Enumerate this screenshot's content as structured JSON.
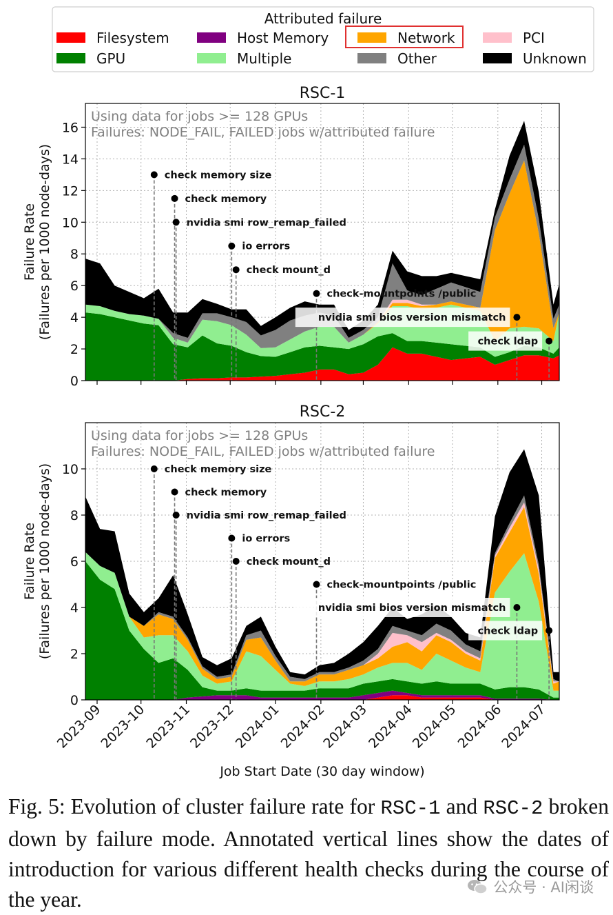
{
  "legend": {
    "title": "Attributed failure",
    "entries": [
      {
        "label": "Filesystem",
        "color": "#ff0000"
      },
      {
        "label": "Host Memory",
        "color": "#800080"
      },
      {
        "label": "Network",
        "color": "#ffa500"
      },
      {
        "label": "PCI",
        "color": "#ffc0cb"
      },
      {
        "label": "GPU",
        "color": "#008000"
      },
      {
        "label": "Multiple",
        "color": "#90ee90"
      },
      {
        "label": "Other",
        "color": "#808080"
      },
      {
        "label": "Unknown",
        "color": "#000000"
      }
    ],
    "highlighted": "Network",
    "highlight_color": "#e03030"
  },
  "chart_data": [
    {
      "type": "area",
      "title": "RSC-1",
      "subtitle_line1": "Using data for jobs >= 128 GPUs",
      "subtitle_line2": "Failures: NODE_FAIL, FAILED jobs w/attributed failure",
      "xlabel": "",
      "ylabel_line1": "Failure Rate",
      "ylabel_line2": "(Failures per 1000 node-days)",
      "xlim_days": [
        0,
        324
      ],
      "ylim": [
        0,
        17.5
      ],
      "yticks": [
        0,
        2,
        4,
        6,
        8,
        10,
        12,
        14,
        16
      ],
      "ytick_labels": [
        "0",
        "2",
        "4",
        "6",
        "8",
        "10",
        "12",
        "14",
        "16"
      ],
      "x_days": [
        0,
        10,
        20,
        30,
        40,
        50,
        60,
        70,
        80,
        90,
        100,
        110,
        120,
        130,
        140,
        150,
        160,
        170,
        180,
        190,
        200,
        210,
        220,
        230,
        240,
        250,
        260,
        270,
        280,
        290,
        300,
        310,
        320,
        324
      ],
      "series": [
        {
          "name": "Filesystem",
          "values": [
            0,
            0,
            0,
            0,
            0,
            0,
            0,
            0.1,
            0.15,
            0.15,
            0.2,
            0.2,
            0.25,
            0.3,
            0.4,
            0.5,
            0.7,
            0.7,
            0.4,
            0.5,
            1.0,
            2.1,
            1.7,
            1.7,
            1.5,
            1.3,
            1.4,
            1.5,
            1.0,
            1.3,
            1.6,
            1.6,
            1.4,
            1.6
          ]
        },
        {
          "name": "Host Memory",
          "values": [
            0,
            0,
            0,
            0,
            0,
            0,
            0,
            0,
            0,
            0,
            0,
            0,
            0,
            0,
            0,
            0,
            0,
            0,
            0,
            0,
            0,
            0,
            0,
            0,
            0,
            0,
            0,
            0,
            0,
            0,
            0,
            0,
            0,
            0
          ]
        },
        {
          "name": "GPU",
          "values": [
            4.3,
            4.2,
            4.0,
            3.8,
            3.6,
            3.5,
            2.3,
            2.0,
            2.7,
            2.2,
            2.0,
            1.6,
            1.3,
            1.2,
            1.4,
            1.6,
            1.5,
            1.4,
            1.6,
            1.8,
            1.8,
            0.9,
            0.8,
            0.8,
            0.9,
            1.0,
            0.8,
            0.6,
            0.5,
            0.5,
            0.6,
            0.5,
            0.3,
            0.5
          ]
        },
        {
          "name": "Multiple",
          "values": [
            0.5,
            0.5,
            0.4,
            0.4,
            0.5,
            0.4,
            0.4,
            0.3,
            1.0,
            1.4,
            1.3,
            1.1,
            0.5,
            0.6,
            0.8,
            1.0,
            1.2,
            1.3,
            0.4,
            0.6,
            0.8,
            1.7,
            2.2,
            2.0,
            2.2,
            2.5,
            2.4,
            2.3,
            1.0,
            1.5,
            1.2,
            1.2,
            0.8,
            2.2
          ]
        },
        {
          "name": "Network",
          "values": [
            0,
            0,
            0,
            0,
            0,
            0,
            0,
            0,
            0,
            0,
            0,
            0,
            0,
            0,
            0,
            0,
            0,
            0,
            0,
            0,
            0.1,
            0.2,
            0.2,
            0.2,
            0.2,
            0.2,
            0.2,
            0.2,
            7.0,
            8.5,
            10.5,
            6.0,
            0.8,
            0
          ]
        },
        {
          "name": "PCI",
          "values": [
            0,
            0,
            0,
            0,
            0,
            0,
            0,
            0,
            0,
            0,
            0,
            0,
            0,
            0,
            0,
            0,
            0,
            0,
            0,
            0,
            0,
            0.2,
            0.2,
            0.1,
            0,
            0,
            0,
            0,
            0,
            0,
            0,
            0,
            0,
            0
          ]
        },
        {
          "name": "Other",
          "values": [
            0,
            0,
            0,
            0,
            0,
            0,
            0.3,
            0.3,
            0.4,
            0.5,
            0.5,
            0.8,
            0.8,
            1.1,
            1.2,
            1.0,
            0.9,
            0.7,
            0.3,
            0.3,
            0.3,
            2.3,
            0.6,
            0.6,
            1.0,
            1.2,
            1.1,
            1.0,
            0.8,
            0.9,
            1.0,
            0.9,
            0.6,
            0.5
          ]
        },
        {
          "name": "Unknown",
          "values": [
            2.9,
            2.7,
            1.6,
            1.4,
            1.1,
            1.9,
            1.3,
            1.6,
            0.9,
            0.6,
            0.5,
            0.8,
            0.6,
            0.8,
            0.8,
            0.9,
            0.5,
            0.7,
            0.5,
            0.6,
            0.8,
            0.8,
            1.2,
            1.2,
            0.8,
            0.6,
            0.7,
            0.8,
            0.5,
            1.5,
            1.5,
            1.7,
            0.9,
            1.3
          ]
        }
      ],
      "annotations": [
        {
          "label": "check memory size",
          "x_day": 47,
          "y": 13,
          "boxed": false
        },
        {
          "label": "check memory",
          "x_day": 61,
          "y": 11.5,
          "boxed": false
        },
        {
          "label": "nvidia smi row_remap_failed",
          "x_day": 62,
          "y": 10,
          "boxed": false
        },
        {
          "label": "io errors",
          "x_day": 100,
          "y": 8.5,
          "boxed": false
        },
        {
          "label": "check mount_d",
          "x_day": 103,
          "y": 7,
          "boxed": false
        },
        {
          "label": "check-mountpoints /public",
          "x_day": 158,
          "y": 5.5,
          "boxed": false
        },
        {
          "label": "nvidia smi bios version mismatch",
          "x_day": 295,
          "y": 4,
          "boxed": true
        },
        {
          "label": "check ldap",
          "x_day": 317,
          "y": 2.5,
          "boxed": true
        }
      ]
    },
    {
      "type": "area",
      "title": "RSC-2",
      "subtitle_line1": "Using data for jobs >= 128 GPUs",
      "subtitle_line2": "Failures: NODE_FAIL, FAILED jobs w/attributed failure",
      "xlabel": "Job Start Date (30 day window)",
      "ylabel_line1": "Failure Rate",
      "ylabel_line2": "(Failures per 1000 node-days)",
      "xlim_days": [
        0,
        324
      ],
      "ylim": [
        0,
        12
      ],
      "yticks": [
        0,
        2,
        4,
        6,
        8,
        10
      ],
      "ytick_labels": [
        "0",
        "2",
        "4",
        "6",
        "8",
        "10"
      ],
      "x_days": [
        0,
        10,
        20,
        30,
        40,
        50,
        60,
        70,
        80,
        90,
        100,
        110,
        120,
        130,
        140,
        150,
        160,
        170,
        180,
        190,
        200,
        210,
        220,
        230,
        240,
        250,
        260,
        270,
        280,
        290,
        300,
        310,
        320,
        324
      ],
      "series": [
        {
          "name": "Filesystem",
          "values": [
            0,
            0,
            0,
            0,
            0,
            0,
            0,
            0,
            0,
            0,
            0,
            0,
            0,
            0,
            0,
            0,
            0,
            0,
            0,
            0,
            0.1,
            0.2,
            0.2,
            0.1,
            0.1,
            0.1,
            0.1,
            0.1,
            0,
            0,
            0,
            0,
            0,
            0
          ]
        },
        {
          "name": "Host Memory",
          "values": [
            0,
            0,
            0,
            0,
            0,
            0,
            0,
            0.1,
            0.15,
            0.2,
            0.2,
            0.2,
            0.1,
            0.1,
            0.1,
            0.1,
            0.1,
            0.1,
            0.1,
            0.2,
            0.2,
            0.2,
            0.1,
            0.1,
            0.1,
            0.1,
            0.1,
            0.1,
            0.05,
            0.05,
            0.05,
            0.05,
            0,
            0
          ]
        },
        {
          "name": "GPU",
          "values": [
            6.0,
            5.2,
            4.8,
            3.0,
            2.2,
            1.6,
            1.8,
            1.2,
            0.4,
            0.2,
            0.2,
            0.3,
            0.3,
            0.3,
            0.3,
            0.3,
            0.4,
            0.4,
            0.4,
            0.5,
            0.5,
            0.5,
            0.5,
            0.5,
            0.6,
            0.5,
            0.5,
            0.5,
            0.4,
            0.5,
            0.5,
            0.4,
            0.1,
            0.1
          ]
        },
        {
          "name": "Multiple",
          "values": [
            0.4,
            0.6,
            0.7,
            0.6,
            0.5,
            1.2,
            1.0,
            0.8,
            0.5,
            0.3,
            0.4,
            1.6,
            1.5,
            0.9,
            0.3,
            0.2,
            0.3,
            0.3,
            0.4,
            0.4,
            0.6,
            0.7,
            0.8,
            0.6,
            1.2,
            1.0,
            0.7,
            0.5,
            4.2,
            5.0,
            5.8,
            3.8,
            0.3,
            0.3
          ]
        },
        {
          "name": "Network",
          "values": [
            0,
            0,
            0,
            0,
            0.5,
            0.9,
            0.7,
            0.5,
            0.3,
            0.2,
            0.2,
            0.5,
            0.8,
            0.4,
            0.1,
            0.2,
            0.3,
            0.3,
            0.4,
            0.4,
            0.4,
            0.7,
            0.9,
            0.8,
            0.8,
            0.8,
            0.6,
            0.5,
            1.5,
            1.7,
            2.0,
            1.2,
            0.3,
            0.4
          ]
        },
        {
          "name": "PCI",
          "values": [
            0,
            0,
            0,
            0,
            0,
            0,
            0,
            0,
            0,
            0,
            0,
            0,
            0,
            0,
            0,
            0,
            0,
            0,
            0,
            0,
            0.2,
            0.6,
            0.3,
            0.4,
            0.1,
            0.1,
            0.1,
            0.1,
            0.1,
            0.2,
            0.2,
            0.2,
            0.1,
            0
          ]
        },
        {
          "name": "Other",
          "values": [
            0,
            0,
            0,
            0,
            0,
            0.1,
            0.1,
            0.1,
            0.1,
            0.1,
            0.1,
            0.2,
            0.3,
            0.2,
            0.2,
            0.1,
            0.1,
            0.1,
            0.1,
            0.2,
            0.2,
            0.3,
            0.2,
            0.3,
            0.4,
            0.4,
            0.3,
            0.3,
            0.1,
            0.2,
            0.3,
            0.2,
            0.1,
            0
          ]
        },
        {
          "name": "Unknown",
          "values": [
            2.4,
            1.6,
            1.8,
            1.0,
            0.6,
            0.6,
            1.8,
            1.0,
            0.4,
            0.5,
            0.7,
            0.4,
            0.6,
            0.4,
            0.2,
            0.2,
            0.3,
            0.4,
            0.6,
            0.8,
            1.0,
            0.8,
            0.5,
            0.9,
            0.8,
            0.6,
            0.5,
            0.6,
            1.6,
            2.2,
            2.0,
            3.0,
            0.3,
            0.4
          ]
        }
      ],
      "annotations": [
        {
          "label": "check memory size",
          "x_day": 47,
          "y": 10,
          "boxed": false
        },
        {
          "label": "check memory",
          "x_day": 61,
          "y": 9,
          "boxed": false
        },
        {
          "label": "nvidia smi row_remap_failed",
          "x_day": 62,
          "y": 8,
          "boxed": false
        },
        {
          "label": "io errors",
          "x_day": 100,
          "y": 7,
          "boxed": false
        },
        {
          "label": "check mount_d",
          "x_day": 103,
          "y": 6,
          "boxed": false
        },
        {
          "label": "check-mountpoints /public",
          "x_day": 158,
          "y": 5,
          "boxed": false
        },
        {
          "label": "nvidia smi bios version mismatch",
          "x_day": 295,
          "y": 4,
          "boxed": true
        },
        {
          "label": "check ldap",
          "x_day": 317,
          "y": 3,
          "boxed": true
        }
      ]
    }
  ],
  "x_ticks": [
    {
      "label": "2023-09",
      "day": 8
    },
    {
      "label": "2023-10",
      "day": 38
    },
    {
      "label": "2023-11",
      "day": 69
    },
    {
      "label": "2023-12",
      "day": 99
    },
    {
      "label": "2024-01",
      "day": 130
    },
    {
      "label": "2024-02",
      "day": 161
    },
    {
      "label": "2024-03",
      "day": 190
    },
    {
      "label": "2024-04",
      "day": 221
    },
    {
      "label": "2024-05",
      "day": 251
    },
    {
      "label": "2024-06",
      "day": 282
    },
    {
      "label": "2024-07",
      "day": 312
    }
  ],
  "caption": {
    "part1": "Fig. 5: Evolution of cluster failure rate for ",
    "code1": "RSC-1",
    "part2": " and ",
    "code2": "RSC-2",
    "part3": " broken down by failure mode. Annotated vertical lines show the dates of introduction for various different health checks during the course of the year."
  },
  "watermark": {
    "text": "公众号 · AI闲谈",
    "icon": "wechat-icon"
  }
}
